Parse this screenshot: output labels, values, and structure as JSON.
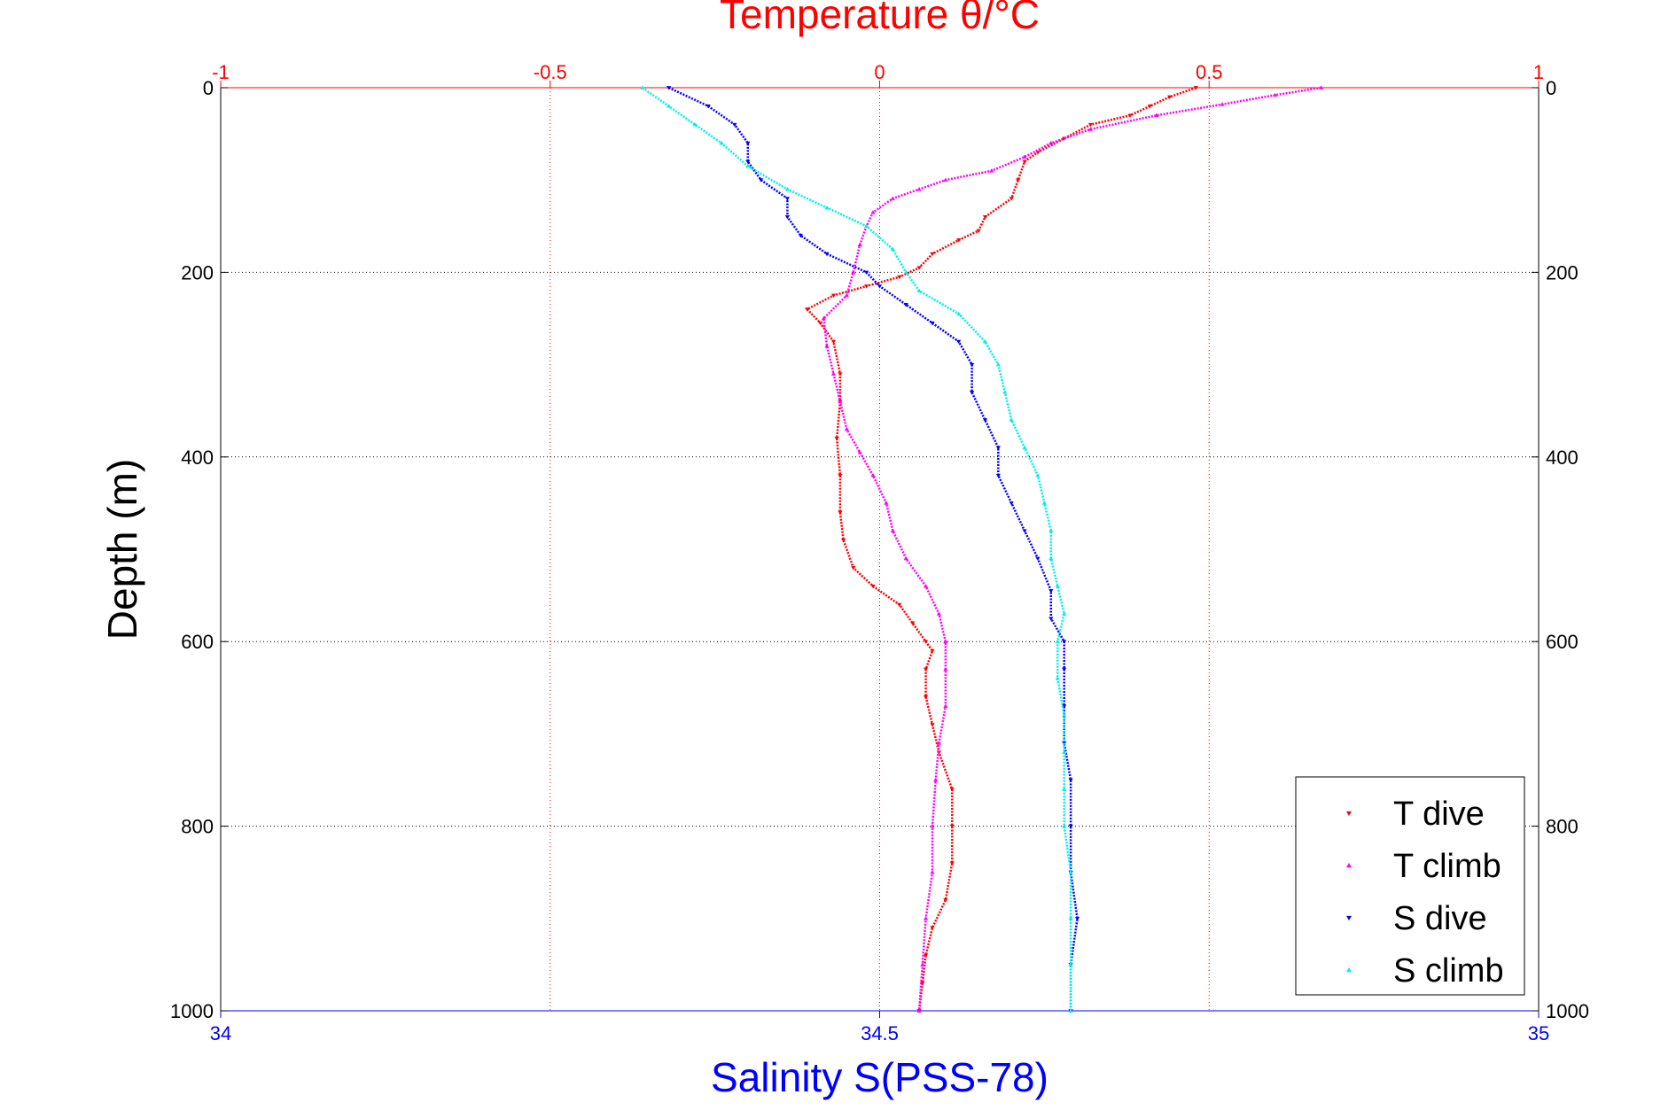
{
  "chart_data": {
    "type": "scatter",
    "top_axis": {
      "label": "Temperature θ/°C",
      "range": [
        -1,
        1
      ],
      "ticks": [
        -1,
        -0.5,
        0,
        0.5,
        1
      ],
      "tick_labels": [
        "-1",
        "-0.5",
        "0",
        "0.5",
        "1"
      ],
      "color": "#ff0000"
    },
    "bottom_axis": {
      "label": "Salinity S(PSS-78)",
      "range": [
        34,
        35
      ],
      "ticks": [
        34,
        34.5,
        35
      ],
      "tick_labels": [
        "34",
        "34.5",
        "35"
      ],
      "color": "#0000ff"
    },
    "y_axis": {
      "label": "Depth (m)",
      "range": [
        0,
        1000
      ],
      "reversed": true,
      "ticks": [
        0,
        200,
        400,
        600,
        800,
        1000
      ],
      "tick_labels": [
        "0",
        "200",
        "400",
        "600",
        "800",
        "1000"
      ]
    },
    "grid": true,
    "legend_position": "bottom-right",
    "series": [
      {
        "name": "T dive",
        "axis": "top",
        "color": "#ff0000",
        "marker": "triangle-down",
        "points": [
          [
            0.48,
            0
          ],
          [
            0.44,
            10
          ],
          [
            0.41,
            20
          ],
          [
            0.38,
            30
          ],
          [
            0.32,
            40
          ],
          [
            0.28,
            55
          ],
          [
            0.24,
            70
          ],
          [
            0.22,
            80
          ],
          [
            0.21,
            100
          ],
          [
            0.2,
            120
          ],
          [
            0.16,
            140
          ],
          [
            0.15,
            155
          ],
          [
            0.12,
            165
          ],
          [
            0.08,
            180
          ],
          [
            0.06,
            195
          ],
          [
            0.03,
            205
          ],
          [
            -0.02,
            215
          ],
          [
            -0.07,
            225
          ],
          [
            -0.11,
            240
          ],
          [
            -0.09,
            255
          ],
          [
            -0.07,
            275
          ],
          [
            -0.06,
            310
          ],
          [
            -0.06,
            340
          ],
          [
            -0.065,
            380
          ],
          [
            -0.06,
            420
          ],
          [
            -0.06,
            460
          ],
          [
            -0.055,
            490
          ],
          [
            -0.04,
            520
          ],
          [
            -0.01,
            540
          ],
          [
            0.03,
            560
          ],
          [
            0.05,
            580
          ],
          [
            0.07,
            600
          ],
          [
            0.08,
            610
          ],
          [
            0.07,
            630
          ],
          [
            0.07,
            660
          ],
          [
            0.08,
            690
          ],
          [
            0.09,
            720
          ],
          [
            0.11,
            760
          ],
          [
            0.11,
            800
          ],
          [
            0.11,
            840
          ],
          [
            0.1,
            880
          ],
          [
            0.08,
            910
          ],
          [
            0.07,
            940
          ],
          [
            0.065,
            970
          ],
          [
            0.06,
            1000
          ]
        ]
      },
      {
        "name": "T climb",
        "axis": "top",
        "color": "#ff00ff",
        "marker": "triangle-up",
        "points": [
          [
            0.67,
            0
          ],
          [
            0.6,
            8
          ],
          [
            0.52,
            18
          ],
          [
            0.42,
            30
          ],
          [
            0.32,
            45
          ],
          [
            0.26,
            60
          ],
          [
            0.22,
            75
          ],
          [
            0.17,
            90
          ],
          [
            0.1,
            100
          ],
          [
            0.06,
            110
          ],
          [
            0.02,
            120
          ],
          [
            -0.01,
            135
          ],
          [
            -0.02,
            150
          ],
          [
            -0.03,
            170
          ],
          [
            -0.04,
            200
          ],
          [
            -0.05,
            225
          ],
          [
            -0.085,
            250
          ],
          [
            -0.08,
            280
          ],
          [
            -0.07,
            310
          ],
          [
            -0.06,
            340
          ],
          [
            -0.05,
            370
          ],
          [
            -0.03,
            395
          ],
          [
            -0.01,
            420
          ],
          [
            0.01,
            450
          ],
          [
            0.02,
            480
          ],
          [
            0.04,
            510
          ],
          [
            0.07,
            540
          ],
          [
            0.09,
            570
          ],
          [
            0.1,
            600
          ],
          [
            0.1,
            630
          ],
          [
            0.1,
            670
          ],
          [
            0.09,
            710
          ],
          [
            0.085,
            750
          ],
          [
            0.08,
            800
          ],
          [
            0.08,
            850
          ],
          [
            0.07,
            900
          ],
          [
            0.065,
            950
          ],
          [
            0.06,
            1000
          ]
        ]
      },
      {
        "name": "S dive",
        "axis": "bottom",
        "color": "#0000ff",
        "marker": "triangle-down",
        "points": [
          [
            34.34,
            0
          ],
          [
            34.37,
            20
          ],
          [
            34.39,
            40
          ],
          [
            34.4,
            60
          ],
          [
            34.4,
            80
          ],
          [
            34.41,
            100
          ],
          [
            34.43,
            120
          ],
          [
            34.43,
            140
          ],
          [
            34.44,
            160
          ],
          [
            34.46,
            180
          ],
          [
            34.49,
            200
          ],
          [
            34.5,
            215
          ],
          [
            34.52,
            235
          ],
          [
            34.54,
            255
          ],
          [
            34.56,
            275
          ],
          [
            34.57,
            300
          ],
          [
            34.57,
            330
          ],
          [
            34.58,
            360
          ],
          [
            34.59,
            390
          ],
          [
            34.59,
            420
          ],
          [
            34.6,
            450
          ],
          [
            34.61,
            480
          ],
          [
            34.62,
            510
          ],
          [
            34.63,
            545
          ],
          [
            34.63,
            575
          ],
          [
            34.64,
            600
          ],
          [
            34.64,
            630
          ],
          [
            34.64,
            670
          ],
          [
            34.64,
            710
          ],
          [
            34.645,
            750
          ],
          [
            34.645,
            800
          ],
          [
            34.645,
            850
          ],
          [
            34.65,
            900
          ],
          [
            34.645,
            950
          ],
          [
            34.645,
            1000
          ]
        ]
      },
      {
        "name": "S climb",
        "axis": "bottom",
        "color": "#00eeee",
        "marker": "triangle-up",
        "points": [
          [
            34.32,
            0
          ],
          [
            34.34,
            20
          ],
          [
            34.36,
            40
          ],
          [
            34.38,
            60
          ],
          [
            34.4,
            85
          ],
          [
            34.43,
            110
          ],
          [
            34.46,
            130
          ],
          [
            34.49,
            150
          ],
          [
            34.51,
            175
          ],
          [
            34.52,
            200
          ],
          [
            34.53,
            220
          ],
          [
            34.56,
            245
          ],
          [
            34.58,
            275
          ],
          [
            34.59,
            300
          ],
          [
            34.595,
            330
          ],
          [
            34.6,
            360
          ],
          [
            34.61,
            390
          ],
          [
            34.62,
            420
          ],
          [
            34.625,
            450
          ],
          [
            34.63,
            480
          ],
          [
            34.63,
            510
          ],
          [
            34.635,
            540
          ],
          [
            34.64,
            570
          ],
          [
            34.635,
            600
          ],
          [
            34.635,
            640
          ],
          [
            34.64,
            680
          ],
          [
            34.64,
            720
          ],
          [
            34.64,
            760
          ],
          [
            34.64,
            800
          ],
          [
            34.645,
            850
          ],
          [
            34.645,
            900
          ],
          [
            34.645,
            950
          ],
          [
            34.645,
            1000
          ]
        ]
      }
    ]
  }
}
